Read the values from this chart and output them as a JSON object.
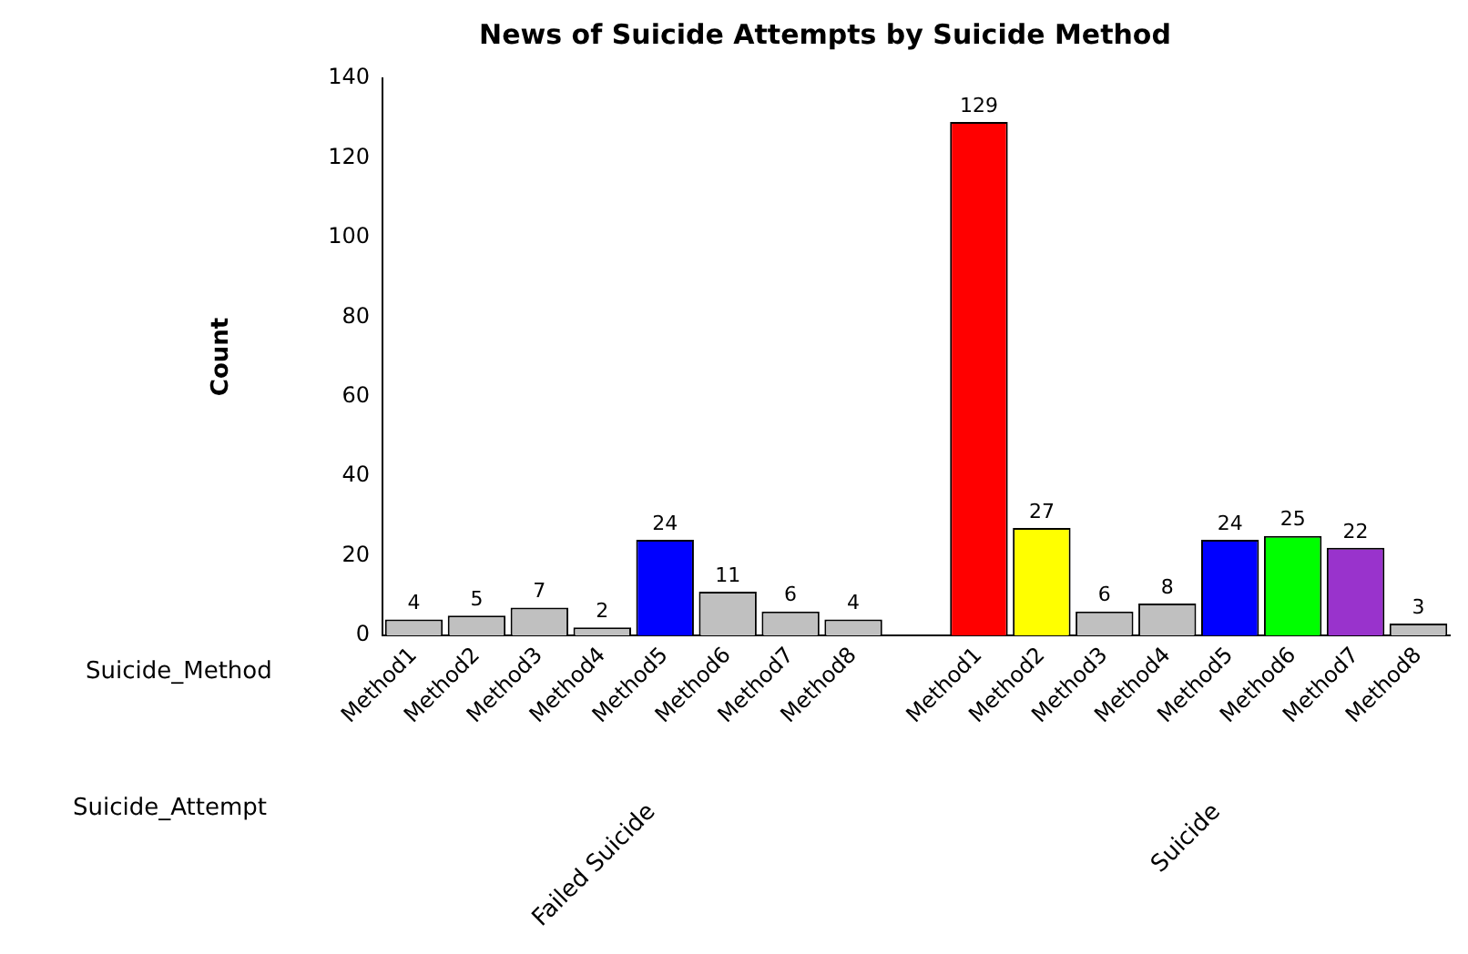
{
  "chart_data": {
    "type": "bar",
    "title": "News of Suicide Attempts by Suicide Method",
    "ylabel": "Count",
    "categories": [
      "Method1",
      "Method2",
      "Method3",
      "Method4",
      "Method5",
      "Method6",
      "Method7",
      "Method8",
      null,
      "Method1",
      "Method2",
      "Method3",
      "Method4",
      "Method5",
      "Method6",
      "Method7",
      "Method8"
    ],
    "values": [
      4,
      5,
      7,
      2,
      24,
      11,
      6,
      4,
      null,
      129,
      27,
      6,
      8,
      24,
      25,
      22,
      3
    ],
    "colors": [
      "#c0c0c0",
      "#c0c0c0",
      "#c0c0c0",
      "#c0c0c0",
      "#0000ff",
      "#c0c0c0",
      "#c0c0c0",
      "#c0c0c0",
      "#c0c0c0",
      "#ff0000",
      "#ffff00",
      "#c0c0c0",
      "#c0c0c0",
      "#0000ff",
      "#00ff00",
      "#9933cc",
      "#c0c0c0"
    ],
    "ylim": [
      0,
      140
    ],
    "yticks": [
      0,
      20,
      40,
      60,
      80,
      100,
      120,
      140
    ],
    "grid": false,
    "data_labels": true,
    "annotations": [
      "Suicide_Method",
      "Suicide_Attempt",
      "Failed Suicide",
      "Suicide"
    ]
  }
}
